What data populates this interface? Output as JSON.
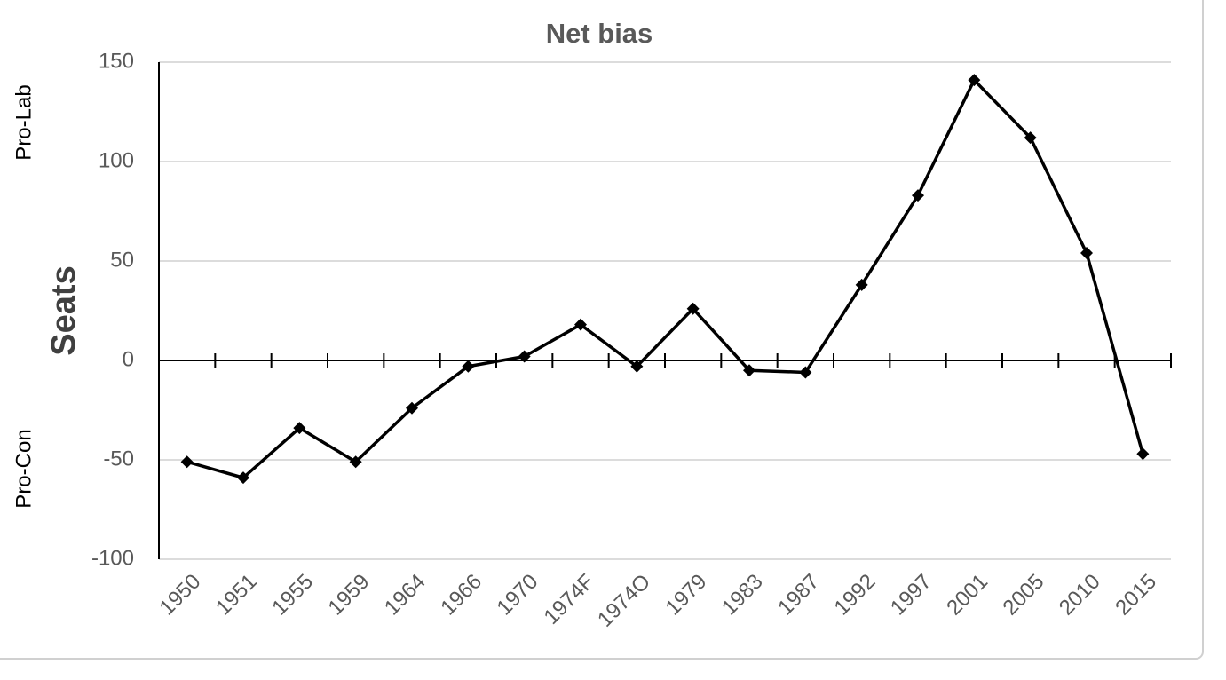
{
  "chart_data": {
    "type": "line",
    "title": "Net bias",
    "y_label": "Seats",
    "annotations": [
      "Pro-Lab",
      "Pro-Con"
    ],
    "categories": [
      "1950",
      "1951",
      "1955",
      "1959",
      "1964",
      "1966",
      "1970",
      "1974F",
      "1974O",
      "1979",
      "1983",
      "1987",
      "1992",
      "1997",
      "2001",
      "2005",
      "2010",
      "2015"
    ],
    "series": [
      {
        "name": "Net bias",
        "color": "#000000",
        "values": [
          -51,
          -59,
          -34,
          -51,
          -24,
          -3,
          2,
          18,
          -3,
          26,
          -5,
          -6,
          38,
          83,
          141,
          112,
          54,
          -47
        ]
      }
    ],
    "ylim": [
      -100,
      150
    ],
    "yticks": [
      -100,
      -50,
      0,
      50,
      100,
      150
    ],
    "grid": true
  }
}
